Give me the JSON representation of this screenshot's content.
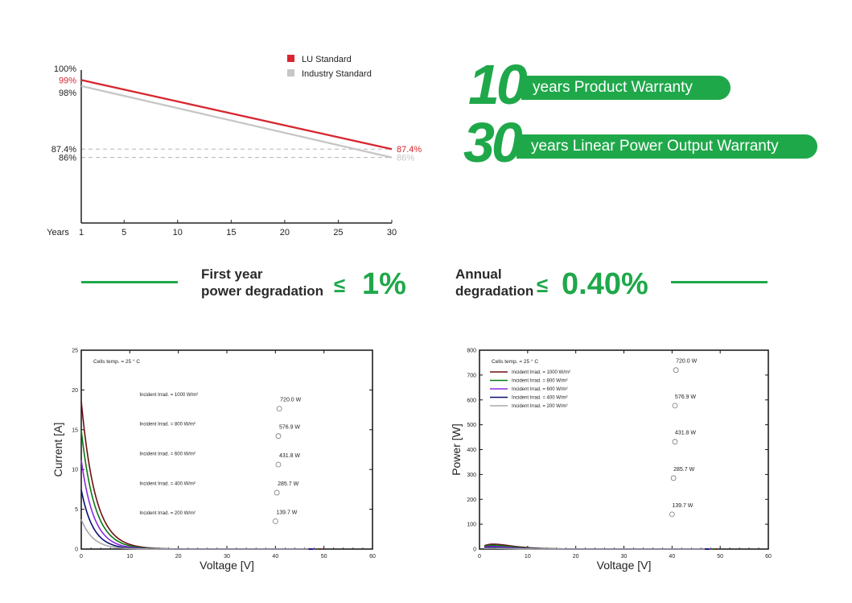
{
  "colors": {
    "green": "#1fa84a",
    "red": "#d7262f",
    "gray": "#c6c6c6"
  },
  "warranty": {
    "product_years": "10",
    "product_text": "years Product Warranty",
    "power_years": "30",
    "power_text": "years Linear Power Output Warranty"
  },
  "degradation": {
    "first_line1": "First year",
    "first_line2": "power degradation",
    "first_symbol": "≤",
    "first_value": "1%",
    "annual_line1": "Annual",
    "annual_line2": "degradation",
    "annual_symbol": "≤",
    "annual_value": "0.40%"
  },
  "chart_data": [
    {
      "type": "line",
      "xlabel": "Years",
      "x_ticks": [
        "1",
        "5",
        "10",
        "15",
        "20",
        "25",
        "30"
      ],
      "y_ticks": [
        "100%",
        "99%",
        "98%",
        "87.4%",
        "86%"
      ],
      "xlim": [
        1,
        30
      ],
      "ylim": [
        75,
        100
      ],
      "legend_position": "top",
      "series": [
        {
          "name": "LU Standard",
          "color": "#d7262f",
          "x": [
            1,
            30
          ],
          "y": [
            99,
            87.4
          ],
          "end_label": "87.4%"
        },
        {
          "name": "Industry Standard",
          "color": "#c6c6c6",
          "x": [
            1,
            30
          ],
          "y": [
            98,
            86
          ],
          "end_label": "86%"
        }
      ],
      "reference_lines": [
        87.4,
        86
      ]
    },
    {
      "type": "line",
      "xlabel": "Voltage [V]",
      "ylabel": "Current  [A]",
      "annotation": "Cells temp. = 25 ° C",
      "xlim": [
        0,
        60
      ],
      "ylim": [
        0,
        25
      ],
      "x_ticks": [
        "0",
        "10",
        "20",
        "30",
        "40",
        "50",
        "60"
      ],
      "y_ticks": [
        "0",
        "5",
        "10",
        "15",
        "20",
        "25"
      ],
      "series": [
        {
          "name": "Incident Irrad. = 1000 W/m²",
          "color": "#6b0f12",
          "isc": 18.6,
          "voc": 49.4,
          "mpp_v": 40.8,
          "mpp_i": 17.65,
          "mpp_label": "720.0 W"
        },
        {
          "name": "Incident Irrad. = 800 W/m²",
          "color": "#0a7a12",
          "isc": 14.95,
          "voc": 48.9,
          "mpp_v": 40.6,
          "mpp_i": 14.2,
          "mpp_label": "576.9 W"
        },
        {
          "name": "Incident Irrad. = 600 W/m²",
          "color": "#8a2be2",
          "isc": 11.2,
          "voc": 48.3,
          "mpp_v": 40.6,
          "mpp_i": 10.63,
          "mpp_label": "431.8 W"
        },
        {
          "name": "Incident Irrad. = 400 W/m²",
          "color": "#0b0f6e",
          "isc": 7.45,
          "voc": 47.7,
          "mpp_v": 40.3,
          "mpp_i": 7.09,
          "mpp_label": "285.7 W"
        },
        {
          "name": "Incident Irrad. = 200 W/m²",
          "color": "#a8a8a8",
          "isc": 3.72,
          "voc": 46.8,
          "mpp_v": 40.0,
          "mpp_i": 3.49,
          "mpp_label": "139.7 W"
        }
      ]
    },
    {
      "type": "line",
      "xlabel": "Voltage [V]",
      "ylabel": "Power  [W]",
      "annotation": "Cells temp. = 25 ° C",
      "xlim": [
        0,
        60
      ],
      "ylim": [
        0,
        800
      ],
      "x_ticks": [
        "0",
        "10",
        "20",
        "30",
        "40",
        "50",
        "60"
      ],
      "y_ticks": [
        "0",
        "100",
        "200",
        "300",
        "400",
        "500",
        "600",
        "700",
        "800"
      ],
      "legend_position": "top-left",
      "series": [
        {
          "name": "Incident Irrad. = 1000 W/m²",
          "color": "#6b0f12",
          "voc": 49.4,
          "mpp_v": 40.8,
          "mpp_p": 720.0,
          "mpp_label": "720.0 W"
        },
        {
          "name": "Incident Irrad. = 800 W/m²",
          "color": "#0a7a12",
          "voc": 48.9,
          "mpp_v": 40.6,
          "mpp_p": 576.9,
          "mpp_label": "576.9 W"
        },
        {
          "name": "Incident Irrad. = 600 W/m²",
          "color": "#8a2be2",
          "voc": 48.3,
          "mpp_v": 40.6,
          "mpp_p": 431.8,
          "mpp_label": "431.8 W"
        },
        {
          "name": "Incident Irrad. = 400 W/m²",
          "color": "#0b0f6e",
          "voc": 47.7,
          "mpp_v": 40.3,
          "mpp_p": 285.7,
          "mpp_label": "285.7 W"
        },
        {
          "name": "Incident Irrad. = 200 W/m²",
          "color": "#a8a8a8",
          "voc": 46.8,
          "mpp_v": 40.0,
          "mpp_p": 139.7,
          "mpp_label": "139.7 W"
        }
      ]
    }
  ]
}
